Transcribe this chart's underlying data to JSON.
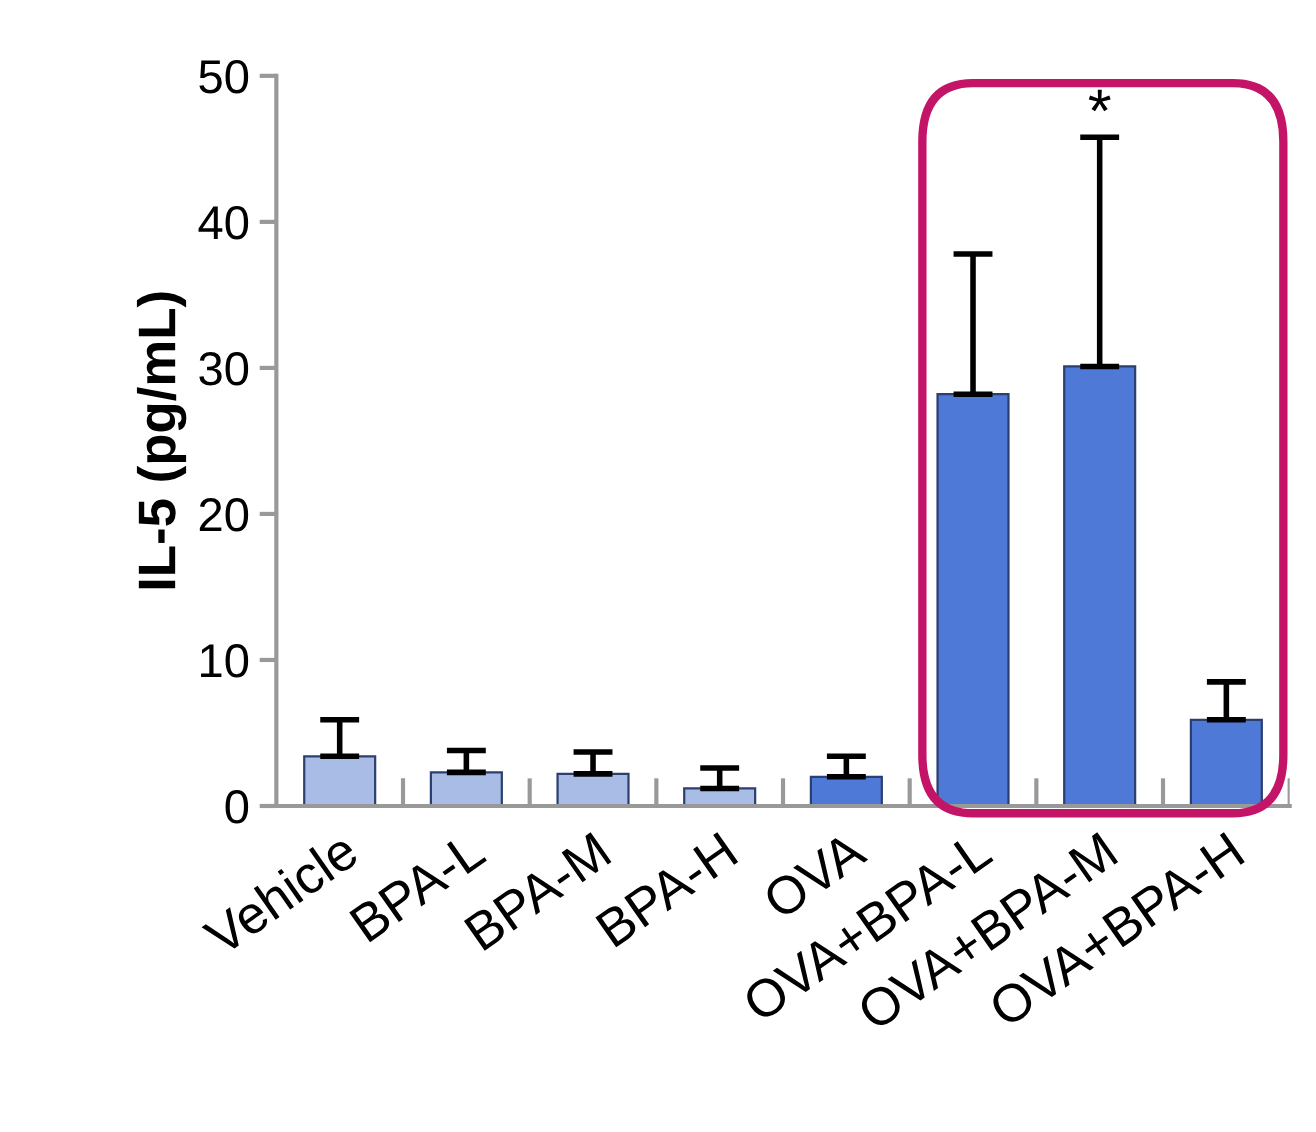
{
  "chart_data": {
    "type": "bar",
    "ylabel": "IL-5 (pg/mL)",
    "categories": [
      "Vehicle",
      "BPA-L",
      "BPA-M",
      "BPA-H",
      "OVA",
      "OVA+BPA-L",
      "OVA+BPA-M",
      "OVA+BPA-H"
    ],
    "values": [
      3.4,
      2.3,
      2.2,
      1.2,
      2.0,
      28.2,
      30.1,
      5.9
    ],
    "errors": [
      [
        3.4,
        5.9
      ],
      [
        2.3,
        3.8
      ],
      [
        2.2,
        3.7
      ],
      [
        1.2,
        2.6
      ],
      [
        2.0,
        3.4
      ],
      [
        28.2,
        37.8
      ],
      [
        30.1,
        45.8
      ],
      [
        5.9,
        8.5
      ]
    ],
    "colors": [
      "#a9bce6",
      "#a9bce6",
      "#a9bce6",
      "#a9bce6",
      "#4f79d6",
      "#4f79d6",
      "#4f79d6",
      "#4f79d6"
    ],
    "ylim": [
      0,
      50
    ],
    "yticks": [
      0,
      10,
      20,
      30,
      40,
      50
    ],
    "grid": false,
    "legend": false,
    "annotations": [
      "*"
    ]
  }
}
